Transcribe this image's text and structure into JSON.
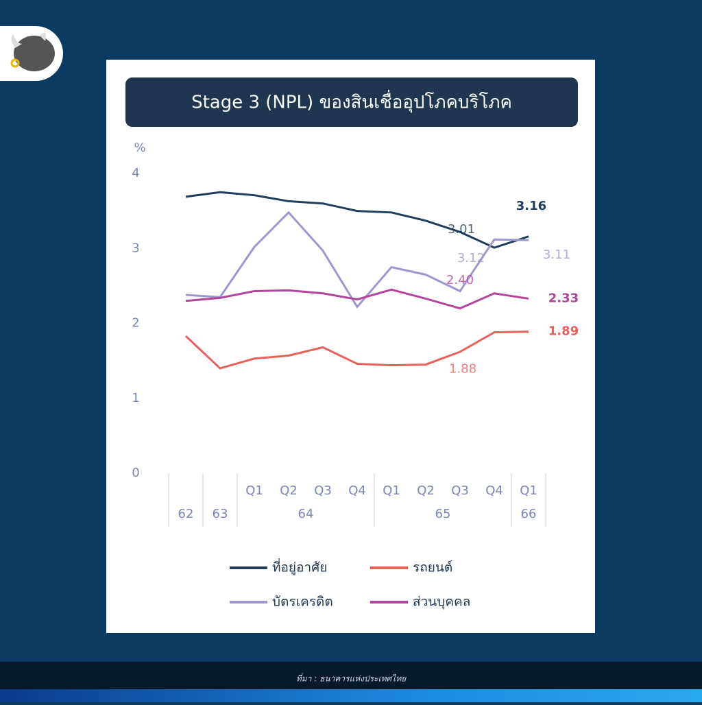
{
  "header": {
    "title": "Stage 3 (NPL) ของสินเชื่ออุปโภคบริโภค"
  },
  "chart_data": {
    "type": "line",
    "y_label": "%",
    "categories": [
      null,
      null,
      "Q1",
      "Q2",
      "Q3",
      "Q4",
      "Q1",
      "Q2",
      "Q3",
      "Q4",
      "Q1"
    ],
    "groups": [
      {
        "label": "62",
        "count": 1
      },
      {
        "label": "63",
        "count": 1
      },
      {
        "label": "64",
        "count": 4
      },
      {
        "label": "65",
        "count": 4
      },
      {
        "label": "66",
        "count": 1
      }
    ],
    "ylim": [
      0,
      4
    ],
    "yticks": [
      0,
      1,
      2,
      3,
      4
    ],
    "series": [
      {
        "name": "ที่อยู่อาศัย",
        "color": "#223d5c",
        "values": [
          3.69,
          3.75,
          3.71,
          3.63,
          3.6,
          3.5,
          3.48,
          3.37,
          3.22,
          3.01,
          3.16
        ],
        "value_labels": [
          null,
          null,
          null,
          null,
          null,
          null,
          null,
          null,
          null,
          "3.01",
          "3.16"
        ]
      },
      {
        "name": "รถยนต์",
        "color": "#e8605c",
        "values": [
          1.83,
          1.4,
          1.53,
          1.57,
          1.68,
          1.46,
          1.44,
          1.45,
          1.62,
          1.88,
          1.89
        ],
        "value_labels": [
          null,
          null,
          null,
          null,
          null,
          null,
          null,
          null,
          null,
          "1.88",
          "1.89"
        ]
      },
      {
        "name": "บัตรเครดิต",
        "color": "#9d97cf",
        "values": [
          2.38,
          2.35,
          3.02,
          3.48,
          2.97,
          2.22,
          2.75,
          2.65,
          2.43,
          3.12,
          3.11
        ],
        "value_labels": [
          null,
          null,
          null,
          null,
          null,
          null,
          null,
          null,
          null,
          "3.12",
          "3.11"
        ]
      },
      {
        "name": "ส่วนบุคคล",
        "color": "#b0479b",
        "values": [
          2.3,
          2.34,
          2.43,
          2.44,
          2.4,
          2.32,
          2.45,
          2.33,
          2.2,
          2.4,
          2.33
        ],
        "value_labels": [
          null,
          null,
          null,
          null,
          null,
          null,
          null,
          null,
          null,
          "2.40",
          "2.33"
        ]
      }
    ]
  },
  "footer": {
    "source": "ที่มา : ธนาคารแห่งประเทศไทย"
  }
}
